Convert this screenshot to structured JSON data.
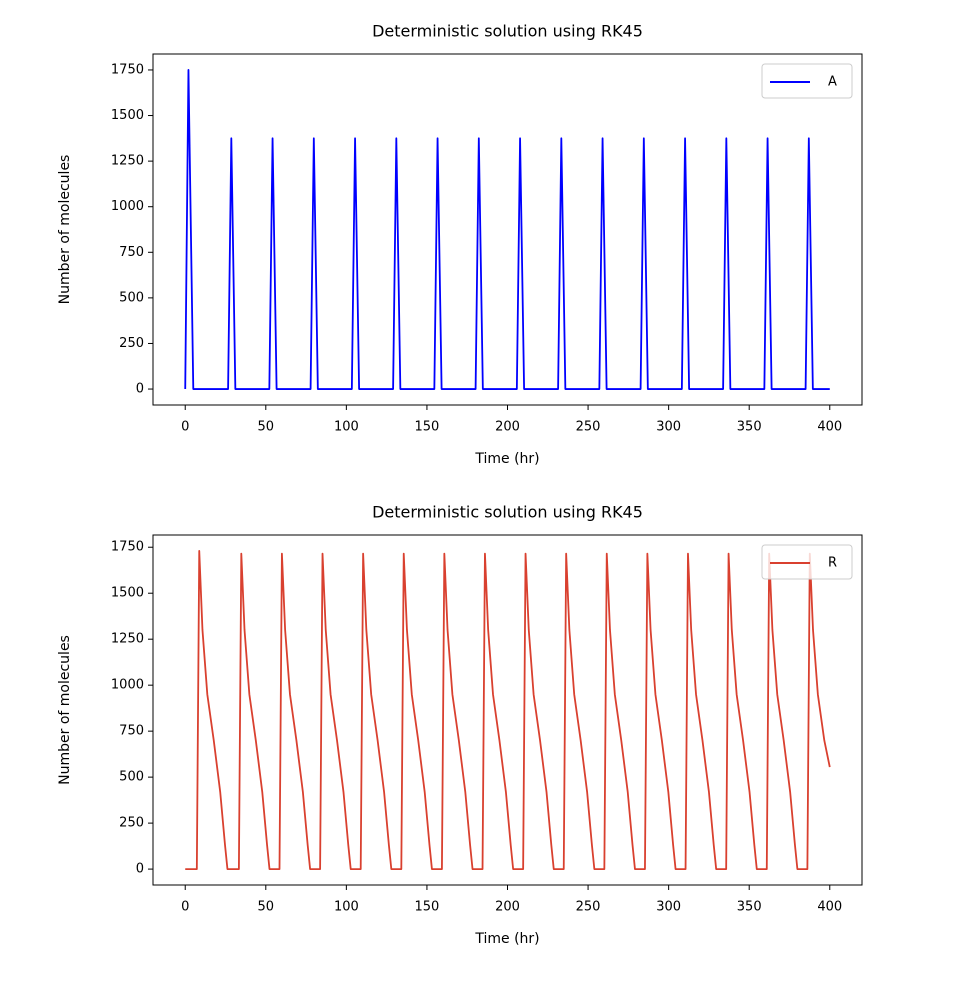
{
  "chart_data": [
    {
      "type": "line",
      "title": "Deterministic solution using RK45",
      "xlabel": "Time (hr)",
      "ylabel": "Number of molecules",
      "xlim": [
        -20,
        420
      ],
      "ylim": [
        -87.5,
        1837.5
      ],
      "xticks": [
        0,
        50,
        100,
        150,
        200,
        250,
        300,
        350,
        400
      ],
      "yticks": [
        0,
        250,
        500,
        750,
        1000,
        1250,
        1500,
        1750
      ],
      "legend": "upper right",
      "x": [
        0,
        2,
        5,
        26.6,
        28.6,
        31.1,
        52.2,
        54.2,
        56.7,
        77.8,
        79.8,
        82.3,
        103.4,
        105.4,
        107.9,
        129,
        131,
        133.5,
        154.6,
        156.6,
        159.1,
        180.2,
        182.2,
        184.7,
        205.8,
        207.8,
        210.3,
        231.4,
        233.4,
        235.9,
        257,
        259,
        261.5,
        282.6,
        284.6,
        287.1,
        308.2,
        310.2,
        312.7,
        333.8,
        335.8,
        338.3,
        359.4,
        361.4,
        363.9,
        385,
        387,
        389.5,
        400
      ],
      "series": [
        {
          "name": "A",
          "color": "#0000ff",
          "values": [
            0,
            1750,
            0,
            0,
            1375,
            0,
            0,
            1375,
            0,
            0,
            1375,
            0,
            0,
            1375,
            0,
            0,
            1375,
            0,
            0,
            1375,
            0,
            0,
            1375,
            0,
            0,
            1375,
            0,
            0,
            1375,
            0,
            0,
            1375,
            0,
            0,
            1375,
            0,
            0,
            1375,
            0,
            0,
            1375,
            0,
            0,
            1375,
            0,
            0,
            1375,
            0,
            0
          ]
        }
      ]
    },
    {
      "type": "line",
      "title": "Deterministic solution using RK45",
      "xlabel": "Time (hr)",
      "ylabel": "Number of molecules",
      "xlim": [
        -20,
        420
      ],
      "ylim": [
        -86.5,
        1816.5
      ],
      "xticks": [
        0,
        50,
        100,
        150,
        200,
        250,
        300,
        350,
        400
      ],
      "yticks": [
        0,
        250,
        500,
        750,
        1000,
        1250,
        1500,
        1750
      ],
      "legend": "upper right",
      "x": [
        0,
        7.2,
        8.7,
        10.7,
        13.7,
        17.7,
        21.7,
        24.7,
        26.2,
        33.3,
        34.8,
        36.8,
        39.8,
        43.8,
        47.8,
        50.8,
        52.3,
        58.5,
        60,
        62,
        65,
        69,
        73,
        76,
        77.5,
        83.7,
        85.2,
        87.2,
        90.2,
        94.2,
        98.2,
        101.2,
        102.7,
        108.9,
        110.4,
        112.4,
        115.4,
        119.4,
        123.4,
        126.4,
        127.9,
        134.1,
        135.6,
        137.6,
        140.6,
        144.6,
        148.6,
        151.6,
        153.1,
        159.3,
        160.8,
        162.8,
        165.8,
        169.8,
        173.8,
        176.8,
        178.3,
        184.5,
        186,
        188,
        191,
        195,
        199,
        202,
        203.5,
        209.7,
        211.2,
        213.2,
        216.2,
        220.2,
        224.2,
        227.2,
        228.7,
        234.9,
        236.4,
        238.4,
        241.4,
        245.4,
        249.4,
        252.4,
        253.9,
        260.1,
        261.6,
        263.6,
        266.6,
        270.6,
        274.6,
        277.6,
        279.1,
        285.3,
        286.8,
        288.8,
        291.8,
        295.8,
        299.8,
        302.8,
        304.3,
        310.5,
        312,
        314,
        317,
        321,
        325,
        328,
        329.5,
        335.7,
        337.2,
        339.2,
        342.2,
        346.2,
        350.2,
        353.2,
        354.7,
        360.9,
        362.4,
        364.4,
        367.4,
        371.4,
        375.4,
        378.4,
        379.9,
        386.1,
        387.6,
        389.6,
        392.6,
        396.6,
        400
      ],
      "series": [
        {
          "name": "R",
          "color": "#d9402f",
          "values": [
            0,
            0,
            1730,
            1300,
            950,
            700,
            420,
            130,
            0,
            0,
            1715,
            1300,
            950,
            700,
            420,
            130,
            0,
            0,
            1715,
            1300,
            950,
            700,
            420,
            130,
            0,
            0,
            1715,
            1300,
            950,
            700,
            420,
            130,
            0,
            0,
            1715,
            1300,
            950,
            700,
            420,
            130,
            0,
            0,
            1715,
            1300,
            950,
            700,
            420,
            130,
            0,
            0,
            1715,
            1300,
            950,
            700,
            420,
            130,
            0,
            0,
            1715,
            1300,
            950,
            700,
            420,
            130,
            0,
            0,
            1715,
            1300,
            950,
            700,
            420,
            130,
            0,
            0,
            1715,
            1300,
            950,
            700,
            420,
            130,
            0,
            0,
            1715,
            1300,
            950,
            700,
            420,
            130,
            0,
            0,
            1715,
            1300,
            950,
            700,
            420,
            130,
            0,
            0,
            1715,
            1300,
            950,
            700,
            420,
            130,
            0,
            0,
            1715,
            1300,
            950,
            700,
            420,
            130,
            0,
            0,
            1715,
            1300,
            950,
            700,
            420,
            130,
            0,
            0,
            1715,
            1300,
            950,
            700,
            555
          ]
        }
      ]
    }
  ]
}
